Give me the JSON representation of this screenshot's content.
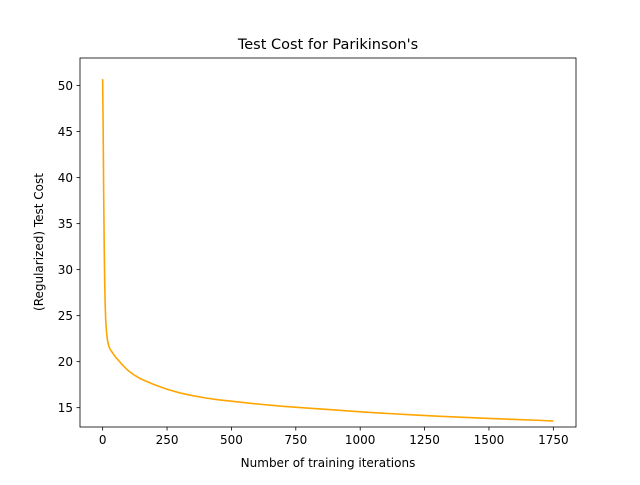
{
  "chart_data": {
    "type": "line",
    "title": "Test Cost for Parikinson's",
    "xlabel": "Number of training iterations",
    "ylabel": "(Regularized) Test Cost",
    "xlim": [
      -88,
      1838
    ],
    "ylim": [
      12.9,
      53.0
    ],
    "xticks": [
      0,
      250,
      500,
      750,
      1000,
      1250,
      1500,
      1750
    ],
    "yticks": [
      15,
      20,
      25,
      30,
      35,
      40,
      45,
      50
    ],
    "grid": false,
    "legend": "none",
    "series": [
      {
        "color": "#ffa500",
        "x": [
          0,
          2,
          4,
          6,
          8,
          10,
          12,
          15,
          18,
          21,
          25,
          30,
          40,
          50,
          60,
          75,
          100,
          125,
          150,
          175,
          200,
          250,
          300,
          350,
          400,
          450,
          500,
          600,
          700,
          800,
          900,
          1000,
          1100,
          1200,
          1300,
          1400,
          1500,
          1600,
          1700,
          1750
        ],
        "y": [
          50.7,
          45.0,
          38.0,
          32.5,
          28.5,
          26.0,
          24.4,
          23.2,
          22.5,
          22.0,
          21.6,
          21.3,
          20.9,
          20.5,
          20.2,
          19.7,
          19.0,
          18.5,
          18.1,
          17.8,
          17.5,
          17.0,
          16.6,
          16.3,
          16.05,
          15.85,
          15.7,
          15.4,
          15.15,
          14.95,
          14.75,
          14.55,
          14.38,
          14.22,
          14.08,
          13.95,
          13.83,
          13.72,
          13.62,
          13.55
        ]
      }
    ]
  }
}
